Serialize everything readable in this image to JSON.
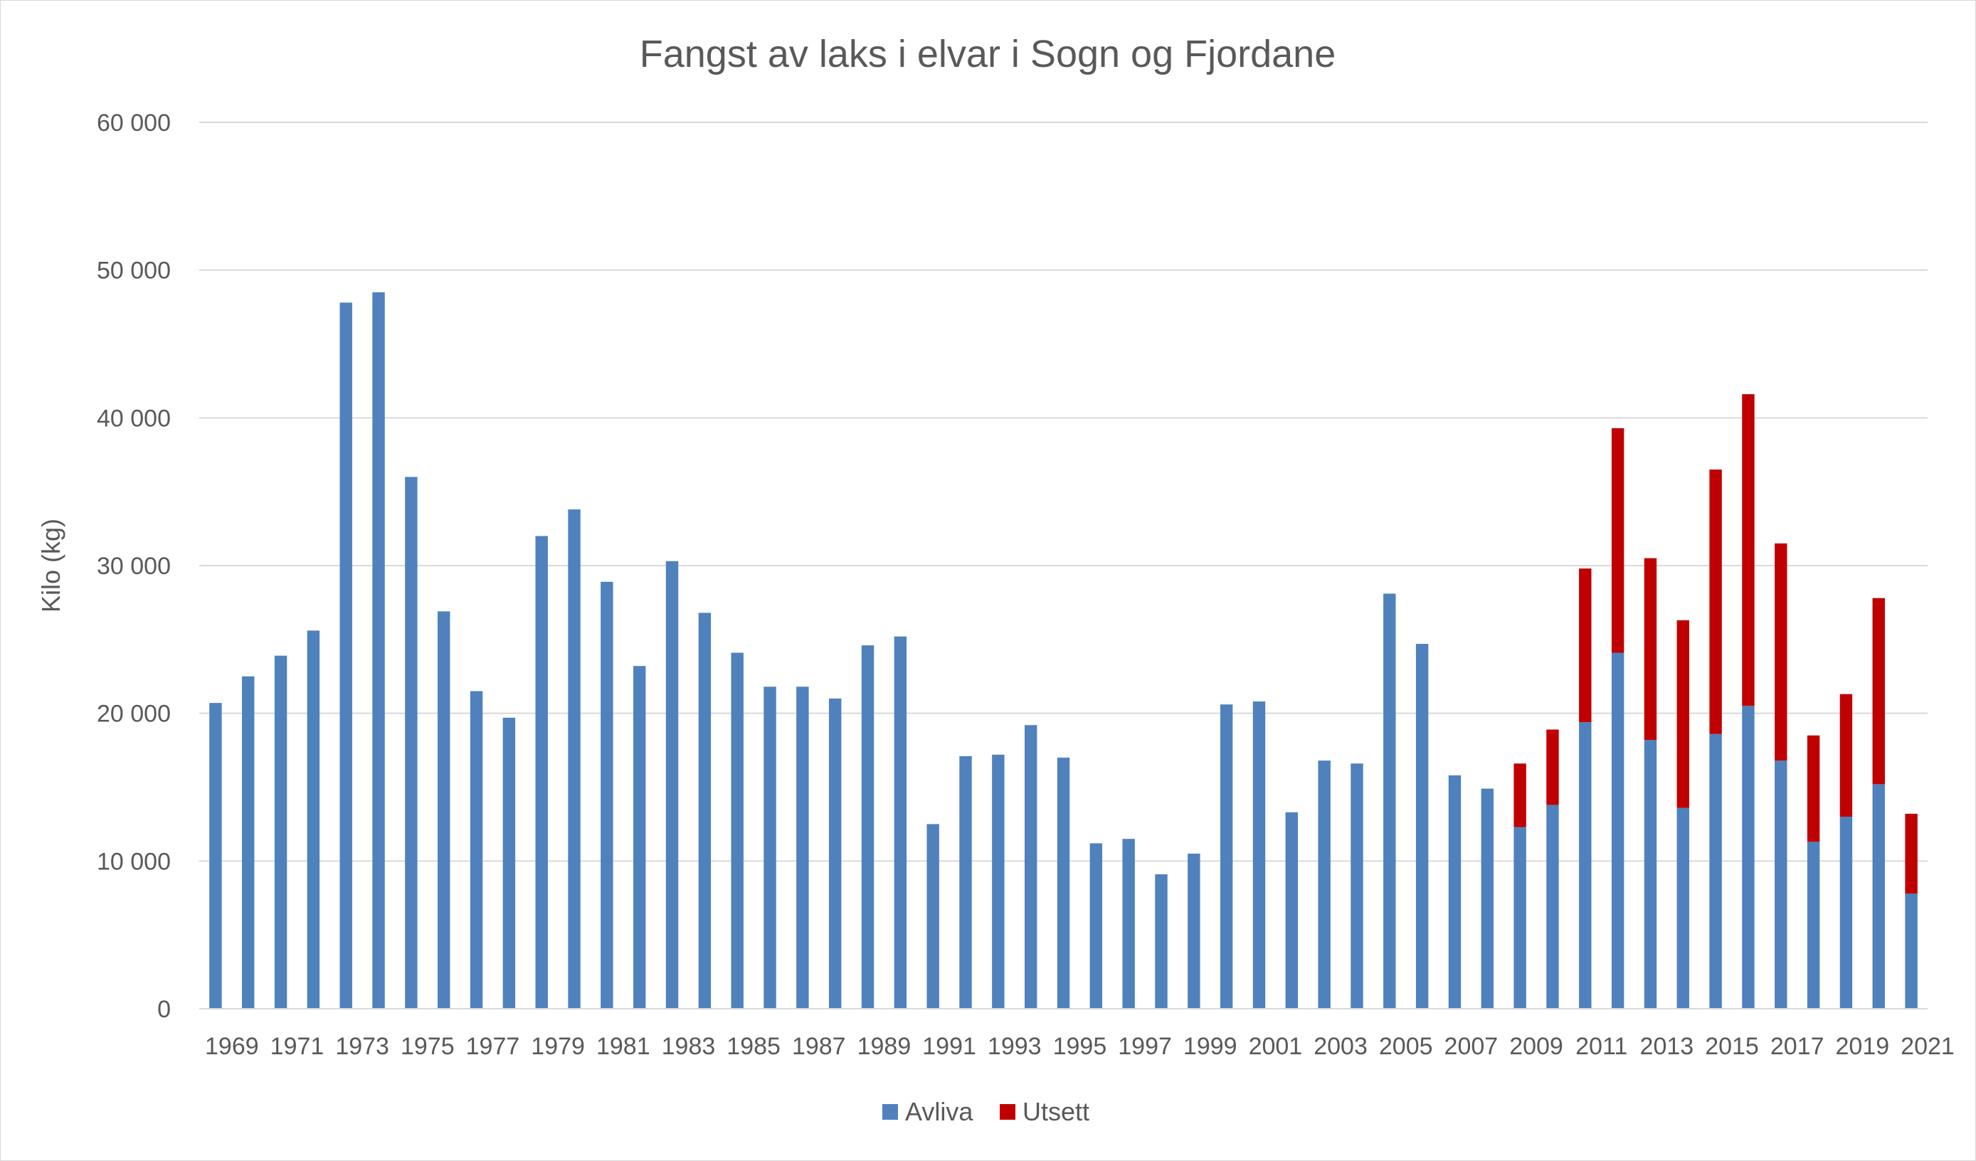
{
  "chart_data": {
    "type": "bar",
    "stacked": true,
    "title": "Fangst av laks i elvar i Sogn og Fjordane",
    "xlabel": "",
    "ylabel": "Kilo (kg)",
    "ylim": [
      0,
      60000
    ],
    "yticks": [
      0,
      10000,
      20000,
      30000,
      40000,
      50000,
      60000
    ],
    "ytick_labels": [
      "0",
      "10 000",
      "20 000",
      "30 000",
      "40 000",
      "50 000",
      "60 000"
    ],
    "grid": true,
    "legend_position": "bottom",
    "categories": [
      "1969",
      "1970",
      "1971",
      "1972",
      "1973",
      "1974",
      "1975",
      "1976",
      "1977",
      "1978",
      "1979",
      "1980",
      "1981",
      "1982",
      "1983",
      "1984",
      "1985",
      "1986",
      "1987",
      "1988",
      "1989",
      "1990",
      "1991",
      "1992",
      "1993",
      "1994",
      "1995",
      "1996",
      "1997",
      "1998",
      "1999",
      "2000",
      "2001",
      "2002",
      "2003",
      "2004",
      "2005",
      "2006",
      "2007",
      "2008",
      "2009",
      "2010",
      "2011",
      "2012",
      "2013",
      "2014",
      "2015",
      "2016",
      "2017",
      "2018",
      "2019",
      "2020",
      "2021"
    ],
    "xtick_labels": [
      "1969",
      "1971",
      "1973",
      "1975",
      "1977",
      "1979",
      "1981",
      "1983",
      "1985",
      "1987",
      "1989",
      "1991",
      "1993",
      "1995",
      "1997",
      "1999",
      "2001",
      "2003",
      "2005",
      "2007",
      "2009",
      "2011",
      "2013",
      "2015",
      "2017",
      "2019",
      "2021"
    ],
    "series": [
      {
        "name": "Avliva",
        "color": "#4f81bd",
        "values": [
          20700,
          22500,
          23900,
          25600,
          47800,
          48500,
          36000,
          26900,
          21500,
          19700,
          32000,
          33800,
          28900,
          23200,
          30300,
          26800,
          24100,
          21800,
          21800,
          21000,
          24600,
          25200,
          12500,
          17100,
          17200,
          19200,
          17000,
          11200,
          11500,
          9100,
          10500,
          20600,
          20800,
          13300,
          16800,
          16600,
          28100,
          24700,
          15800,
          14900,
          12300,
          13800,
          19400,
          24100,
          18200,
          13600,
          18600,
          20500,
          16800,
          11300,
          13000,
          15200,
          7800
        ]
      },
      {
        "name": "Utsett",
        "color": "#c00000",
        "values": [
          0,
          0,
          0,
          0,
          0,
          0,
          0,
          0,
          0,
          0,
          0,
          0,
          0,
          0,
          0,
          0,
          0,
          0,
          0,
          0,
          0,
          0,
          0,
          0,
          0,
          0,
          0,
          0,
          0,
          0,
          0,
          0,
          0,
          0,
          0,
          0,
          0,
          0,
          0,
          0,
          4300,
          5100,
          10400,
          15200,
          12300,
          12700,
          17900,
          21100,
          14700,
          7200,
          8300,
          12600,
          5400
        ]
      }
    ]
  }
}
